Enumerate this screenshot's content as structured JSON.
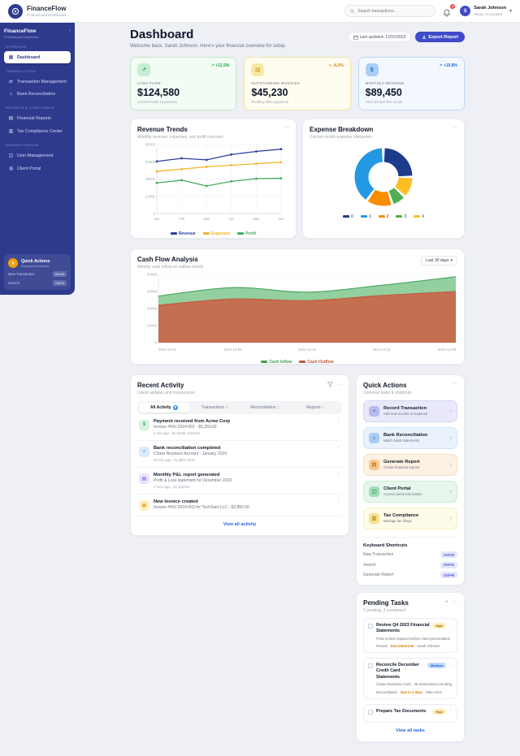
{
  "topbar": {
    "brand": "FinanceFlow",
    "tagline": "Professional Dashboard",
    "search_placeholder": "Search transactions...",
    "notification_count": "3",
    "user": {
      "initial": "S",
      "name": "Sarah Johnson",
      "role": "Senior Accountant"
    }
  },
  "sidebar": {
    "brand": "FinanceFlow",
    "tagline": "Professional Dashboard",
    "collapse_icon": "‹",
    "sections": [
      {
        "label": "OVERVIEW",
        "items": [
          {
            "label": "Dashboard",
            "glyph": "▦",
            "icon": "dashboard-icon",
            "active": true
          }
        ]
      },
      {
        "label": "TRANSACTIONS",
        "items": [
          {
            "label": "Transaction Management",
            "glyph": "⇄",
            "icon": "transactions-icon"
          },
          {
            "label": "Bank Reconciliation",
            "glyph": "⌂",
            "icon": "bank-icon"
          }
        ]
      },
      {
        "label": "REPORTS & COMPLIANCE",
        "items": [
          {
            "label": "Financial Reports",
            "glyph": "▤",
            "icon": "reports-icon"
          },
          {
            "label": "Tax Compliance Center",
            "glyph": "▥",
            "icon": "tax-icon"
          }
        ]
      },
      {
        "label": "ADMINISTRATION",
        "items": [
          {
            "label": "User Management",
            "glyph": "◫",
            "icon": "users-icon"
          },
          {
            "label": "Client Portal",
            "glyph": "◍",
            "icon": "portal-icon"
          }
        ]
      }
    ],
    "quick_panel": {
      "title": "Quick Actions",
      "subtitle": "Keyboard shortcuts",
      "shortcuts": [
        {
          "label": "New Transaction",
          "keys": "Ctrl+N"
        },
        {
          "label": "Search",
          "keys": "Ctrl+K"
        }
      ]
    }
  },
  "page_header": {
    "title": "Dashboard",
    "subtitle": "Welcome back, Sarah Johnson. Here's your financial overview for today.",
    "last_updated": "Last updated: 12/15/2023",
    "export_label": "Export Report"
  },
  "kpis": [
    {
      "label": "CASH FLOW",
      "value": "$124,580",
      "arrow": "↗",
      "change": "+12.5%",
      "note": "Current month vs previous",
      "theme": "green",
      "glyph": "↗",
      "icon": "trend-up-icon"
    },
    {
      "label": "OUTSTANDING INVOICES",
      "value": "$45,230",
      "arrow": "↘",
      "change": "-4.2%",
      "note": "Pending client payments",
      "theme": "yellow",
      "glyph": "▤",
      "icon": "invoice-icon"
    },
    {
      "label": "MONTHLY REVENUE",
      "value": "$89,450",
      "arrow": "↗",
      "change": "+15.8%",
      "note": "Total revenue this month",
      "theme": "blue",
      "glyph": "$",
      "icon": "dollar-icon"
    }
  ],
  "recent_activity": {
    "title": "Recent Activity",
    "subtitle": "Latest updates and transactions",
    "tabs": [
      {
        "label": "All Activity",
        "count": "8",
        "active": true
      },
      {
        "label": "Transactions",
        "count": "4"
      },
      {
        "label": "Reconciliation",
        "count": "1"
      },
      {
        "label": "Reports",
        "count": "1"
      }
    ],
    "items": [
      {
        "title": "Payment received from Acme Corp",
        "desc": "Invoice #INV-2024-001 - $5,250.00",
        "meta": "5 min ago · by Sarah Johnson",
        "theme": "green",
        "glyph": "$",
        "icon": "payment-icon"
      },
      {
        "title": "Bank reconciliation completed",
        "desc": "Chase Business Account - January 2024",
        "meta": "26 min ago · by Mike Chen",
        "theme": "blue",
        "glyph": "⌂",
        "icon": "bank-icon"
      },
      {
        "title": "Monthly P&L report generated",
        "desc": "Profit & Loss statement for December 2023",
        "meta": "1 hour ago · by System",
        "theme": "purple",
        "glyph": "▤",
        "icon": "report-icon"
      },
      {
        "title": "New invoice created",
        "desc": "Invoice #INV-2024-002 for TechStart LLC - $3,800.00",
        "meta": "",
        "theme": "yellow",
        "glyph": "▤",
        "icon": "invoice-icon"
      }
    ],
    "view_all": "View all activity"
  },
  "quick_actions": {
    "title": "Quick Actions",
    "subtitle": "Common tasks & shortcuts",
    "actions": [
      {
        "title": "Record Transaction",
        "desc": "Add new income or expense",
        "theme": "purple",
        "glyph": "+",
        "icon": "plus-icon"
      },
      {
        "title": "Bank Reconciliation",
        "desc": "Match bank statements",
        "theme": "blue",
        "glyph": "⌂",
        "icon": "bank-icon"
      },
      {
        "title": "Generate Report",
        "desc": "Create financial reports",
        "theme": "orange",
        "glyph": "▤",
        "icon": "report-icon"
      },
      {
        "title": "Client Portal",
        "desc": "Access client information",
        "theme": "green",
        "glyph": "◫",
        "icon": "clients-icon"
      },
      {
        "title": "Tax Compliance",
        "desc": "Manage tax filings",
        "theme": "yellow",
        "glyph": "▥",
        "icon": "tax-icon"
      }
    ],
    "keyboard": {
      "title": "Keyboard Shortcuts",
      "rows": [
        {
          "label": "New Transaction",
          "keys": "Ctrl+N"
        },
        {
          "label": "Search",
          "keys": "Ctrl+K"
        },
        {
          "label": "Generate Report",
          "keys": "Ctrl+R"
        }
      ]
    }
  },
  "pending_tasks": {
    "title": "Pending Tasks",
    "subtitle": "3 pending, 2 completed",
    "tasks": [
      {
        "title": "Review Q4 2023 Financial Statements",
        "priority": "High",
        "theme": "high",
        "desc": "Final review required before client presentation",
        "category": "Review",
        "due": "Due tomorrow",
        "assignee": "Sarah Johnson"
      },
      {
        "title": "Reconcile December Credit Card Statements",
        "priority": "Medium",
        "theme": "medium",
        "desc": "Chase Business Card - 45 transactions pending",
        "category": "Reconciliation",
        "due": "Due in 2 days",
        "assignee": "Mike Chen"
      },
      {
        "title": "Prepare Tax Documents",
        "priority": "High",
        "theme": "high",
        "desc": "",
        "category": "",
        "due": "",
        "assignee": ""
      }
    ],
    "view_all": "View all tasks"
  },
  "chart_data": [
    {
      "id": "revenue_trends",
      "type": "line",
      "title": "Revenue Trends",
      "subtitle": "Monthly revenue, expenses, and profit overview",
      "categories": [
        "Jan",
        "Feb",
        "Mar",
        "Apr",
        "May",
        "Jun"
      ],
      "series": [
        {
          "name": "Revenue",
          "color": "#2d3f9e",
          "values": [
            68000,
            72000,
            70000,
            77000,
            81000,
            84000
          ]
        },
        {
          "name": "Expenses",
          "color": "#f0b429",
          "values": [
            55000,
            58000,
            61000,
            63000,
            65000,
            67000
          ]
        },
        {
          "name": "Profit",
          "color": "#3fae5c",
          "values": [
            40000,
            43500,
            36000,
            42000,
            45500,
            46000
          ]
        }
      ],
      "ylim": [
        0,
        90000
      ],
      "yticks": [
        0,
        22500,
        45000,
        67500,
        90000
      ],
      "grid": true,
      "legend_position": "bottom"
    },
    {
      "id": "expense_breakdown",
      "type": "donut",
      "title": "Expense Breakdown",
      "subtitle": "Current month expense categories",
      "slices": [
        {
          "label": "0",
          "color": "#1e3a8a",
          "value": 25
        },
        {
          "label": "4",
          "color": "#fbbf24",
          "value": 12
        },
        {
          "label": "3",
          "color": "#4caf50",
          "value": 8
        },
        {
          "label": "2",
          "color": "#fb8c00",
          "value": 15
        },
        {
          "label": "1",
          "color": "#2499e3",
          "value": 40
        }
      ],
      "legend": [
        {
          "label": "0",
          "color": "#1e3a8a"
        },
        {
          "label": "1",
          "color": "#2499e3"
        },
        {
          "label": "2",
          "color": "#fb8c00"
        },
        {
          "label": "3",
          "color": "#4caf50"
        },
        {
          "label": "4",
          "color": "#fbbf24"
        }
      ],
      "legend_position": "bottom"
    },
    {
      "id": "cash_flow_analysis",
      "type": "area",
      "title": "Cash Flow Analysis",
      "subtitle": "Weekly cash inflow vs outflow trends",
      "range_label": "Last 30 days",
      "x": [
        "2024-12-01",
        "2024-12-08",
        "2024-12-15",
        "2024-12-22",
        "2024-12-29"
      ],
      "series": [
        {
          "name": "Cash Inflow",
          "color": "#93cf9f",
          "line": "#3f9e55",
          "values": [
            41000,
            48500,
            44500,
            50500,
            58000
          ]
        },
        {
          "name": "Cash Outflow",
          "color": "#c46f50",
          "line": "#c0573a",
          "values": [
            33000,
            38500,
            37000,
            41500,
            45000
          ]
        }
      ],
      "ylim": [
        0,
        60000
      ],
      "yticks": [
        0,
        15000,
        30000,
        45000,
        60000
      ],
      "legend_position": "bottom"
    }
  ]
}
